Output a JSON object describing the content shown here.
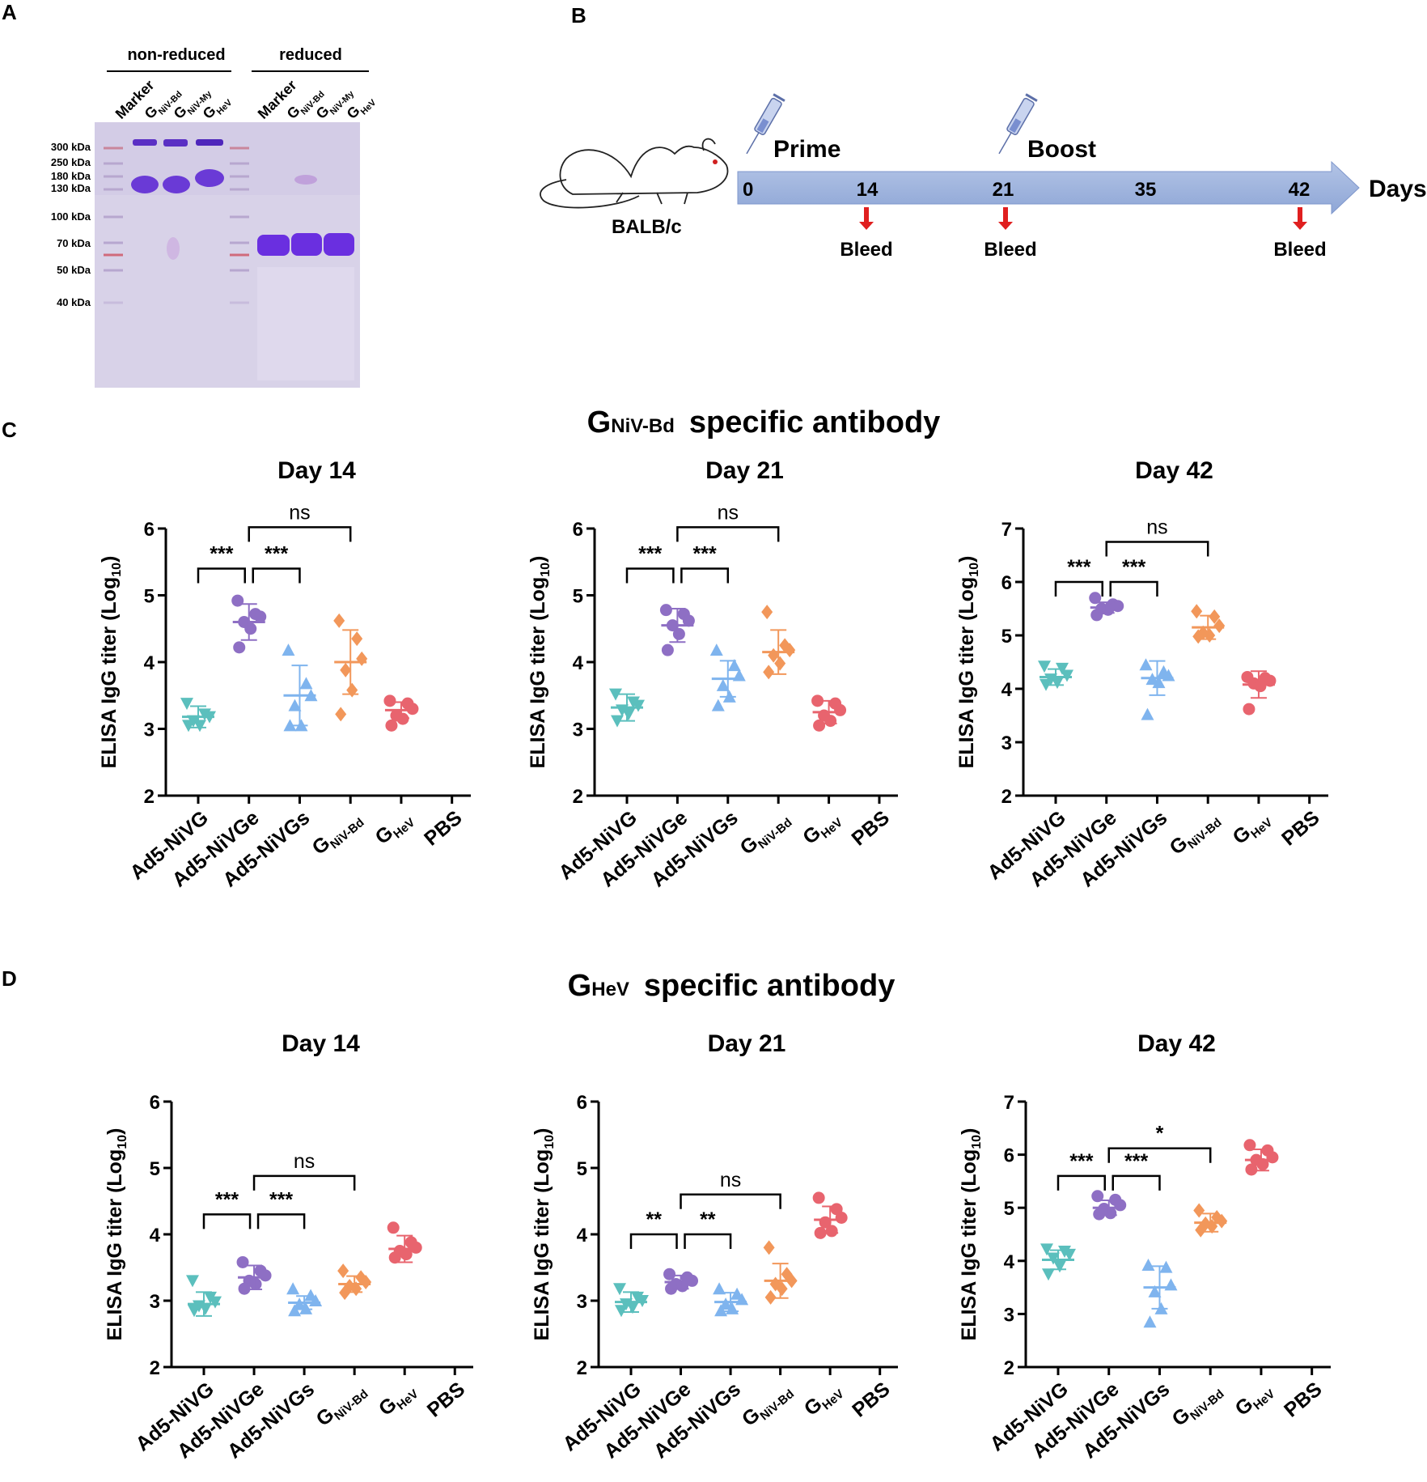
{
  "panels": {
    "A": "A",
    "B": "B",
    "C": "C",
    "D": "D"
  },
  "gel": {
    "header_nonreduced": "non-reduced",
    "header_reduced": "reduced",
    "lanes": [
      {
        "base": "Marker",
        "sub": ""
      },
      {
        "base": "G",
        "sub": "NiV-Bd"
      },
      {
        "base": "G",
        "sub": "NiV-My"
      },
      {
        "base": "G",
        "sub": "HeV"
      },
      {
        "base": "Marker",
        "sub": ""
      },
      {
        "base": "G",
        "sub": "NiV-Bd"
      },
      {
        "base": "G",
        "sub": "NiV-My"
      },
      {
        "base": "G",
        "sub": "HeV"
      }
    ],
    "markers": [
      "300 kDa",
      "250 kDa",
      "180 kDa",
      "130 kDa",
      "100 kDa",
      "70  kDa",
      "50  kDa",
      "40  kDa"
    ]
  },
  "timeline": {
    "strain": "BALB/c",
    "prime": "Prime",
    "boost": "Boost",
    "days_label": "Days",
    "ticks": [
      "0",
      "14",
      "21",
      "35",
      "42"
    ],
    "bleed": [
      "Bleed",
      "Bleed",
      "Bleed"
    ]
  },
  "sections": {
    "C": {
      "title_g": "G",
      "title_sub": "NiV-Bd",
      "title_rest": "specific antibody"
    },
    "D": {
      "title_g": "G",
      "title_sub": "HeV",
      "title_rest": "specific antibody"
    }
  },
  "groups": [
    {
      "base": "Ad5-NiVG",
      "sub": ""
    },
    {
      "base": "Ad5-NiVGe",
      "sub": ""
    },
    {
      "base": "Ad5-NiVGs",
      "sub": ""
    },
    {
      "base": "G",
      "sub": "NiV-Bd"
    },
    {
      "base": "G",
      "sub": "HeV"
    },
    {
      "base": "PBS",
      "sub": ""
    }
  ],
  "colors": {
    "Ad5-NiVG": "#5bbfbd",
    "Ad5-NiVGe": "#8e6fc4",
    "Ad5-NiVGs": "#7fb4ee",
    "GNiV-Bd": "#f2975a",
    "GHeV": "#e8646e",
    "PBS": "#888888"
  },
  "chart_data": [
    {
      "type": "scatter",
      "section": "C",
      "title": "Day 14",
      "ylabel_main": "ELISA IgG titer (Log",
      "ylabel_sub": "10",
      "ylabel_end": ")",
      "ylim": [
        2,
        6
      ],
      "yticks": [
        "2",
        "3",
        "4",
        "5",
        "6"
      ],
      "series": [
        {
          "name": "Ad5-NiVG",
          "marker": "tri-down",
          "mean": 3.18,
          "sd": 0.16,
          "values": [
            3.38,
            3.22,
            3.18,
            3.12,
            3.05,
            3.05
          ]
        },
        {
          "name": "Ad5-NiVGe",
          "marker": "circle",
          "mean": 4.6,
          "sd": 0.27,
          "values": [
            4.92,
            4.72,
            4.68,
            4.6,
            4.5,
            4.22
          ]
        },
        {
          "name": "Ad5-NiVGs",
          "marker": "tri-up",
          "mean": 3.5,
          "sd": 0.45,
          "values": [
            4.18,
            3.68,
            3.5,
            3.35,
            3.05,
            3.05
          ]
        },
        {
          "name": "GNiV-Bd",
          "marker": "diamond",
          "mean": 4.0,
          "sd": 0.48,
          "values": [
            4.62,
            4.35,
            4.05,
            3.88,
            3.58,
            3.22
          ]
        },
        {
          "name": "GHeV",
          "marker": "circle",
          "mean": 3.28,
          "sd": 0.12,
          "values": [
            3.42,
            3.38,
            3.3,
            3.2,
            3.15,
            3.05
          ]
        },
        {
          "name": "PBS",
          "marker": "none",
          "mean": null,
          "sd": null,
          "values": []
        }
      ],
      "comparisons": [
        {
          "from": 0,
          "to": 1,
          "label": "***",
          "y": 5.4
        },
        {
          "from": 1,
          "to": 2,
          "label": "***",
          "y": 5.4
        },
        {
          "from": 1,
          "to": 3,
          "label": "ns",
          "y": 6.02
        }
      ]
    },
    {
      "type": "scatter",
      "section": "C",
      "title": "Day 21",
      "ylabel_main": "ELISA IgG titer (Log",
      "ylabel_sub": "10",
      "ylabel_end": ")",
      "ylim": [
        2,
        6
      ],
      "yticks": [
        "2",
        "3",
        "4",
        "5",
        "6"
      ],
      "series": [
        {
          "name": "Ad5-NiVG",
          "marker": "tri-down",
          "mean": 3.32,
          "sd": 0.2,
          "values": [
            3.52,
            3.4,
            3.35,
            3.28,
            3.22,
            3.12
          ]
        },
        {
          "name": "Ad5-NiVGe",
          "marker": "circle",
          "mean": 4.55,
          "sd": 0.25,
          "values": [
            4.78,
            4.72,
            4.62,
            4.55,
            4.42,
            4.18
          ]
        },
        {
          "name": "Ad5-NiVGs",
          "marker": "tri-up",
          "mean": 3.75,
          "sd": 0.27,
          "values": [
            4.18,
            3.95,
            3.8,
            3.65,
            3.48,
            3.35
          ]
        },
        {
          "name": "GNiV-Bd",
          "marker": "diamond",
          "mean": 4.15,
          "sd": 0.33,
          "values": [
            4.75,
            4.25,
            4.18,
            4.1,
            3.98,
            3.85
          ]
        },
        {
          "name": "GHeV",
          "marker": "circle",
          "mean": 3.25,
          "sd": 0.17,
          "values": [
            3.42,
            3.38,
            3.28,
            3.2,
            3.12,
            3.05
          ]
        },
        {
          "name": "PBS",
          "marker": "none",
          "mean": null,
          "sd": null,
          "values": []
        }
      ],
      "comparisons": [
        {
          "from": 0,
          "to": 1,
          "label": "***",
          "y": 5.4
        },
        {
          "from": 1,
          "to": 2,
          "label": "***",
          "y": 5.4
        },
        {
          "from": 1,
          "to": 3,
          "label": "ns",
          "y": 6.02
        }
      ]
    },
    {
      "type": "scatter",
      "section": "C",
      "title": "Day 42",
      "ylabel_main": "ELISA IgG titer (Log",
      "ylabel_sub": "10",
      "ylabel_end": ")",
      "ylim": [
        2,
        7
      ],
      "yticks": [
        "2",
        "3",
        "4",
        "5",
        "6",
        "7"
      ],
      "series": [
        {
          "name": "Ad5-NiVG",
          "marker": "tri-down",
          "mean": 4.22,
          "sd": 0.15,
          "values": [
            4.42,
            4.38,
            4.25,
            4.18,
            4.12,
            4.08
          ]
        },
        {
          "name": "Ad5-NiVGe",
          "marker": "circle",
          "mean": 5.52,
          "sd": 0.1,
          "values": [
            5.7,
            5.58,
            5.55,
            5.5,
            5.48,
            5.38
          ]
        },
        {
          "name": "Ad5-NiVGs",
          "marker": "tri-up",
          "mean": 4.2,
          "sd": 0.32,
          "values": [
            4.45,
            4.32,
            4.25,
            4.18,
            4.12,
            3.52
          ]
        },
        {
          "name": "GNiV-Bd",
          "marker": "diamond",
          "mean": 5.15,
          "sd": 0.22,
          "values": [
            5.45,
            5.35,
            5.18,
            5.05,
            5.0,
            4.98
          ]
        },
        {
          "name": "GHeV",
          "marker": "circle",
          "mean": 4.08,
          "sd": 0.25,
          "values": [
            4.22,
            4.2,
            4.15,
            4.1,
            4.05,
            3.62
          ]
        },
        {
          "name": "PBS",
          "marker": "none",
          "mean": null,
          "sd": null,
          "values": []
        }
      ],
      "comparisons": [
        {
          "from": 0,
          "to": 1,
          "label": "***",
          "y": 6.0
        },
        {
          "from": 1,
          "to": 2,
          "label": "***",
          "y": 6.0
        },
        {
          "from": 1,
          "to": 3,
          "label": "ns",
          "y": 6.75
        }
      ]
    },
    {
      "type": "scatter",
      "section": "D",
      "title": "Day 14",
      "ylabel_main": "ELISA IgG titer (Log",
      "ylabel_sub": "10",
      "ylabel_end": ")",
      "ylim": [
        2,
        6
      ],
      "yticks": [
        "2",
        "3",
        "4",
        "5",
        "6"
      ],
      "series": [
        {
          "name": "Ad5-NiVG",
          "marker": "tri-down",
          "mean": 2.95,
          "sd": 0.18,
          "values": [
            3.3,
            3.05,
            2.98,
            2.92,
            2.88,
            2.85
          ]
        },
        {
          "name": "Ad5-NiVGe",
          "marker": "circle",
          "mean": 3.35,
          "sd": 0.18,
          "values": [
            3.58,
            3.45,
            3.38,
            3.3,
            3.25,
            3.18
          ]
        },
        {
          "name": "Ad5-NiVGs",
          "marker": "tri-up",
          "mean": 2.97,
          "sd": 0.1,
          "values": [
            3.18,
            3.08,
            3.0,
            2.95,
            2.88,
            2.85
          ]
        },
        {
          "name": "GNiV-Bd",
          "marker": "diamond",
          "mean": 3.25,
          "sd": 0.12,
          "values": [
            3.45,
            3.35,
            3.28,
            3.22,
            3.18,
            3.12
          ]
        },
        {
          "name": "GHeV",
          "marker": "circle",
          "mean": 3.78,
          "sd": 0.2,
          "values": [
            4.1,
            3.88,
            3.8,
            3.75,
            3.7,
            3.65
          ]
        },
        {
          "name": "PBS",
          "marker": "none",
          "mean": null,
          "sd": null,
          "values": []
        }
      ],
      "comparisons": [
        {
          "from": 0,
          "to": 1,
          "label": "***",
          "y": 4.3
        },
        {
          "from": 1,
          "to": 2,
          "label": "***",
          "y": 4.3
        },
        {
          "from": 1,
          "to": 3,
          "label": "ns",
          "y": 4.88
        }
      ]
    },
    {
      "type": "scatter",
      "section": "D",
      "title": "Day 21",
      "ylabel_main": "ELISA IgG titer (Log",
      "ylabel_sub": "10",
      "ylabel_end": ")",
      "ylim": [
        2,
        6
      ],
      "yticks": [
        "2",
        "3",
        "4",
        "5",
        "6"
      ],
      "series": [
        {
          "name": "Ad5-NiVG",
          "marker": "tri-down",
          "mean": 2.98,
          "sd": 0.15,
          "values": [
            3.18,
            3.05,
            3.0,
            2.95,
            2.9,
            2.85
          ]
        },
        {
          "name": "Ad5-NiVGe",
          "marker": "circle",
          "mean": 3.28,
          "sd": 0.1,
          "values": [
            3.4,
            3.35,
            3.3,
            3.25,
            3.22,
            3.18
          ]
        },
        {
          "name": "Ad5-NiVGs",
          "marker": "tri-up",
          "mean": 2.98,
          "sd": 0.14,
          "values": [
            3.18,
            3.1,
            3.02,
            2.95,
            2.88,
            2.85
          ]
        },
        {
          "name": "GNiV-Bd",
          "marker": "diamond",
          "mean": 3.3,
          "sd": 0.26,
          "values": [
            3.8,
            3.4,
            3.3,
            3.25,
            3.18,
            3.05
          ]
        },
        {
          "name": "GHeV",
          "marker": "circle",
          "mean": 4.22,
          "sd": 0.2,
          "values": [
            4.55,
            4.38,
            4.25,
            4.18,
            4.05,
            4.02
          ]
        },
        {
          "name": "PBS",
          "marker": "none",
          "mean": null,
          "sd": null,
          "values": []
        }
      ],
      "comparisons": [
        {
          "from": 0,
          "to": 1,
          "label": "**",
          "y": 4.0
        },
        {
          "from": 1,
          "to": 2,
          "label": "**",
          "y": 4.0
        },
        {
          "from": 1,
          "to": 3,
          "label": "ns",
          "y": 4.6
        }
      ]
    },
    {
      "type": "scatter",
      "section": "D",
      "title": "Day 42",
      "ylabel_main": "ELISA IgG titer (Log",
      "ylabel_sub": "10",
      "ylabel_end": ")",
      "ylim": [
        2,
        7
      ],
      "yticks": [
        "2",
        "3",
        "4",
        "5",
        "6",
        "7"
      ],
      "series": [
        {
          "name": "Ad5-NiVG",
          "marker": "tri-down",
          "mean": 4.02,
          "sd": 0.18,
          "values": [
            4.22,
            4.18,
            4.12,
            4.05,
            3.9,
            3.75
          ]
        },
        {
          "name": "Ad5-NiVGe",
          "marker": "circle",
          "mean": 5.0,
          "sd": 0.14,
          "values": [
            5.22,
            5.15,
            5.05,
            4.98,
            4.9,
            4.88
          ]
        },
        {
          "name": "Ad5-NiVGs",
          "marker": "tri-up",
          "mean": 3.5,
          "sd": 0.4,
          "values": [
            3.92,
            3.88,
            3.55,
            3.42,
            3.1,
            2.85
          ]
        },
        {
          "name": "GNiV-Bd",
          "marker": "diamond",
          "mean": 4.72,
          "sd": 0.17,
          "values": [
            4.95,
            4.82,
            4.75,
            4.7,
            4.65,
            4.58
          ]
        },
        {
          "name": "GHeV",
          "marker": "circle",
          "mean": 5.9,
          "sd": 0.2,
          "values": [
            6.18,
            6.08,
            5.95,
            5.9,
            5.82,
            5.72
          ]
        },
        {
          "name": "PBS",
          "marker": "none",
          "mean": null,
          "sd": null,
          "values": []
        }
      ],
      "comparisons": [
        {
          "from": 0,
          "to": 1,
          "label": "***",
          "y": 5.6
        },
        {
          "from": 1,
          "to": 2,
          "label": "***",
          "y": 5.6
        },
        {
          "from": 1,
          "to": 3,
          "label": "*",
          "y": 6.12
        }
      ]
    }
  ]
}
